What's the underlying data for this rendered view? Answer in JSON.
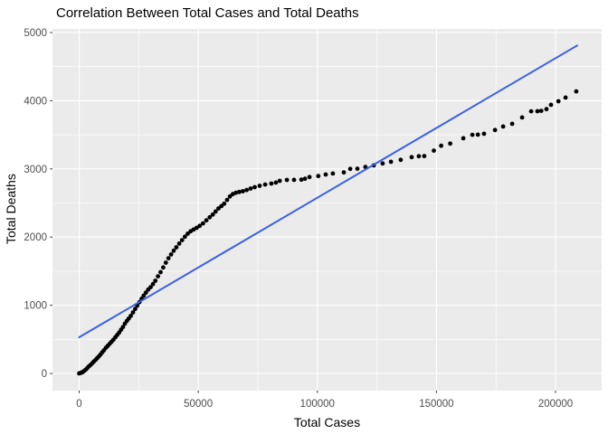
{
  "chart_data": {
    "type": "scatter",
    "title": "Correlation Between Total Cases and Total Deaths",
    "xlabel": "Total Cases",
    "ylabel": "Total Deaths",
    "x_ticks": {
      "values": [
        0,
        50000,
        100000,
        150000,
        200000
      ],
      "labels": [
        "0",
        "50000",
        "100000",
        "150000",
        "200000"
      ]
    },
    "y_ticks": {
      "values": [
        0,
        1000,
        2000,
        3000,
        4000,
        5000
      ],
      "labels": [
        "0",
        "1000",
        "2000",
        "3000",
        "4000",
        "5000"
      ]
    },
    "x_minor": [
      25000,
      75000,
      125000,
      175000
    ],
    "y_minor": [
      500,
      1500,
      2500,
      3500,
      4500
    ],
    "xlim": [
      -11200,
      219800
    ],
    "ylim": [
      -260,
      5050
    ],
    "grid": true,
    "legend": "none",
    "point_radius": 2.4,
    "colors": {
      "panel_bg": "#ebebeb",
      "grid": "#ffffff",
      "point": "#000000",
      "fit_line": "#3b61e0",
      "tick_label": "#4d4d4d",
      "tick_mark": "#333333",
      "axis_text": "#000000"
    },
    "fit_line": {
      "x1": 0,
      "y1": 530,
      "x2": 209100,
      "y2": 4810,
      "width": 2
    },
    "points": [
      [
        0,
        0
      ],
      [
        400,
        5
      ],
      [
        900,
        10
      ],
      [
        1400,
        20
      ],
      [
        2000,
        35
      ],
      [
        2700,
        55
      ],
      [
        3400,
        80
      ],
      [
        4100,
        105
      ],
      [
        4800,
        125
      ],
      [
        5500,
        150
      ],
      [
        6200,
        175
      ],
      [
        6900,
        200
      ],
      [
        7600,
        225
      ],
      [
        8300,
        250
      ],
      [
        9000,
        280
      ],
      [
        9700,
        310
      ],
      [
        10400,
        340
      ],
      [
        11200,
        375
      ],
      [
        12000,
        405
      ],
      [
        12800,
        435
      ],
      [
        13600,
        465
      ],
      [
        14400,
        495
      ],
      [
        15200,
        530
      ],
      [
        16000,
        565
      ],
      [
        16800,
        600
      ],
      [
        17600,
        640
      ],
      [
        18400,
        680
      ],
      [
        19200,
        730
      ],
      [
        20000,
        770
      ],
      [
        20800,
        805
      ],
      [
        21700,
        845
      ],
      [
        22600,
        895
      ],
      [
        23500,
        945
      ],
      [
        24400,
        995
      ],
      [
        25300,
        1045
      ],
      [
        26200,
        1095
      ],
      [
        27100,
        1140
      ],
      [
        28000,
        1185
      ],
      [
        29000,
        1230
      ],
      [
        30000,
        1265
      ],
      [
        31000,
        1310
      ],
      [
        32000,
        1360
      ],
      [
        33100,
        1425
      ],
      [
        34200,
        1485
      ],
      [
        35300,
        1555
      ],
      [
        36400,
        1625
      ],
      [
        37500,
        1690
      ],
      [
        38600,
        1745
      ],
      [
        39700,
        1800
      ],
      [
        40800,
        1850
      ],
      [
        42000,
        1905
      ],
      [
        43200,
        1955
      ],
      [
        44400,
        2005
      ],
      [
        45600,
        2050
      ],
      [
        46800,
        2085
      ],
      [
        48000,
        2110
      ],
      [
        49300,
        2135
      ],
      [
        50600,
        2165
      ],
      [
        52000,
        2200
      ],
      [
        53400,
        2245
      ],
      [
        54800,
        2290
      ],
      [
        56100,
        2330
      ],
      [
        57300,
        2375
      ],
      [
        58500,
        2420
      ],
      [
        59700,
        2455
      ],
      [
        60900,
        2490
      ],
      [
        62100,
        2545
      ],
      [
        63300,
        2595
      ],
      [
        64500,
        2630
      ],
      [
        65800,
        2650
      ],
      [
        67200,
        2662
      ],
      [
        68700,
        2672
      ],
      [
        70300,
        2690
      ],
      [
        72000,
        2712
      ],
      [
        73700,
        2732
      ],
      [
        75800,
        2752
      ],
      [
        78100,
        2770
      ],
      [
        80700,
        2785
      ],
      [
        82600,
        2800
      ],
      [
        84200,
        2825
      ],
      [
        87200,
        2838
      ],
      [
        90200,
        2840
      ],
      [
        93300,
        2842
      ],
      [
        94800,
        2855
      ],
      [
        96700,
        2880
      ],
      [
        100400,
        2895
      ],
      [
        103500,
        2918
      ],
      [
        106500,
        2932
      ],
      [
        111100,
        2948
      ],
      [
        113800,
        3000
      ],
      [
        116800,
        3002
      ],
      [
        120200,
        3028
      ],
      [
        123700,
        3052
      ],
      [
        127400,
        3080
      ],
      [
        130900,
        3105
      ],
      [
        135000,
        3132
      ],
      [
        139600,
        3172
      ],
      [
        142600,
        3186
      ],
      [
        144900,
        3188
      ],
      [
        148900,
        3268
      ],
      [
        152000,
        3340
      ],
      [
        155800,
        3372
      ],
      [
        161300,
        3450
      ],
      [
        165100,
        3500
      ],
      [
        167400,
        3502
      ],
      [
        170000,
        3516
      ],
      [
        174600,
        3570
      ],
      [
        178000,
        3622
      ],
      [
        181800,
        3662
      ],
      [
        186000,
        3755
      ],
      [
        189800,
        3845
      ],
      [
        192400,
        3846
      ],
      [
        194000,
        3852
      ],
      [
        196200,
        3876
      ],
      [
        198100,
        3940
      ],
      [
        201200,
        3992
      ],
      [
        204200,
        4046
      ],
      [
        208700,
        4136
      ]
    ]
  }
}
